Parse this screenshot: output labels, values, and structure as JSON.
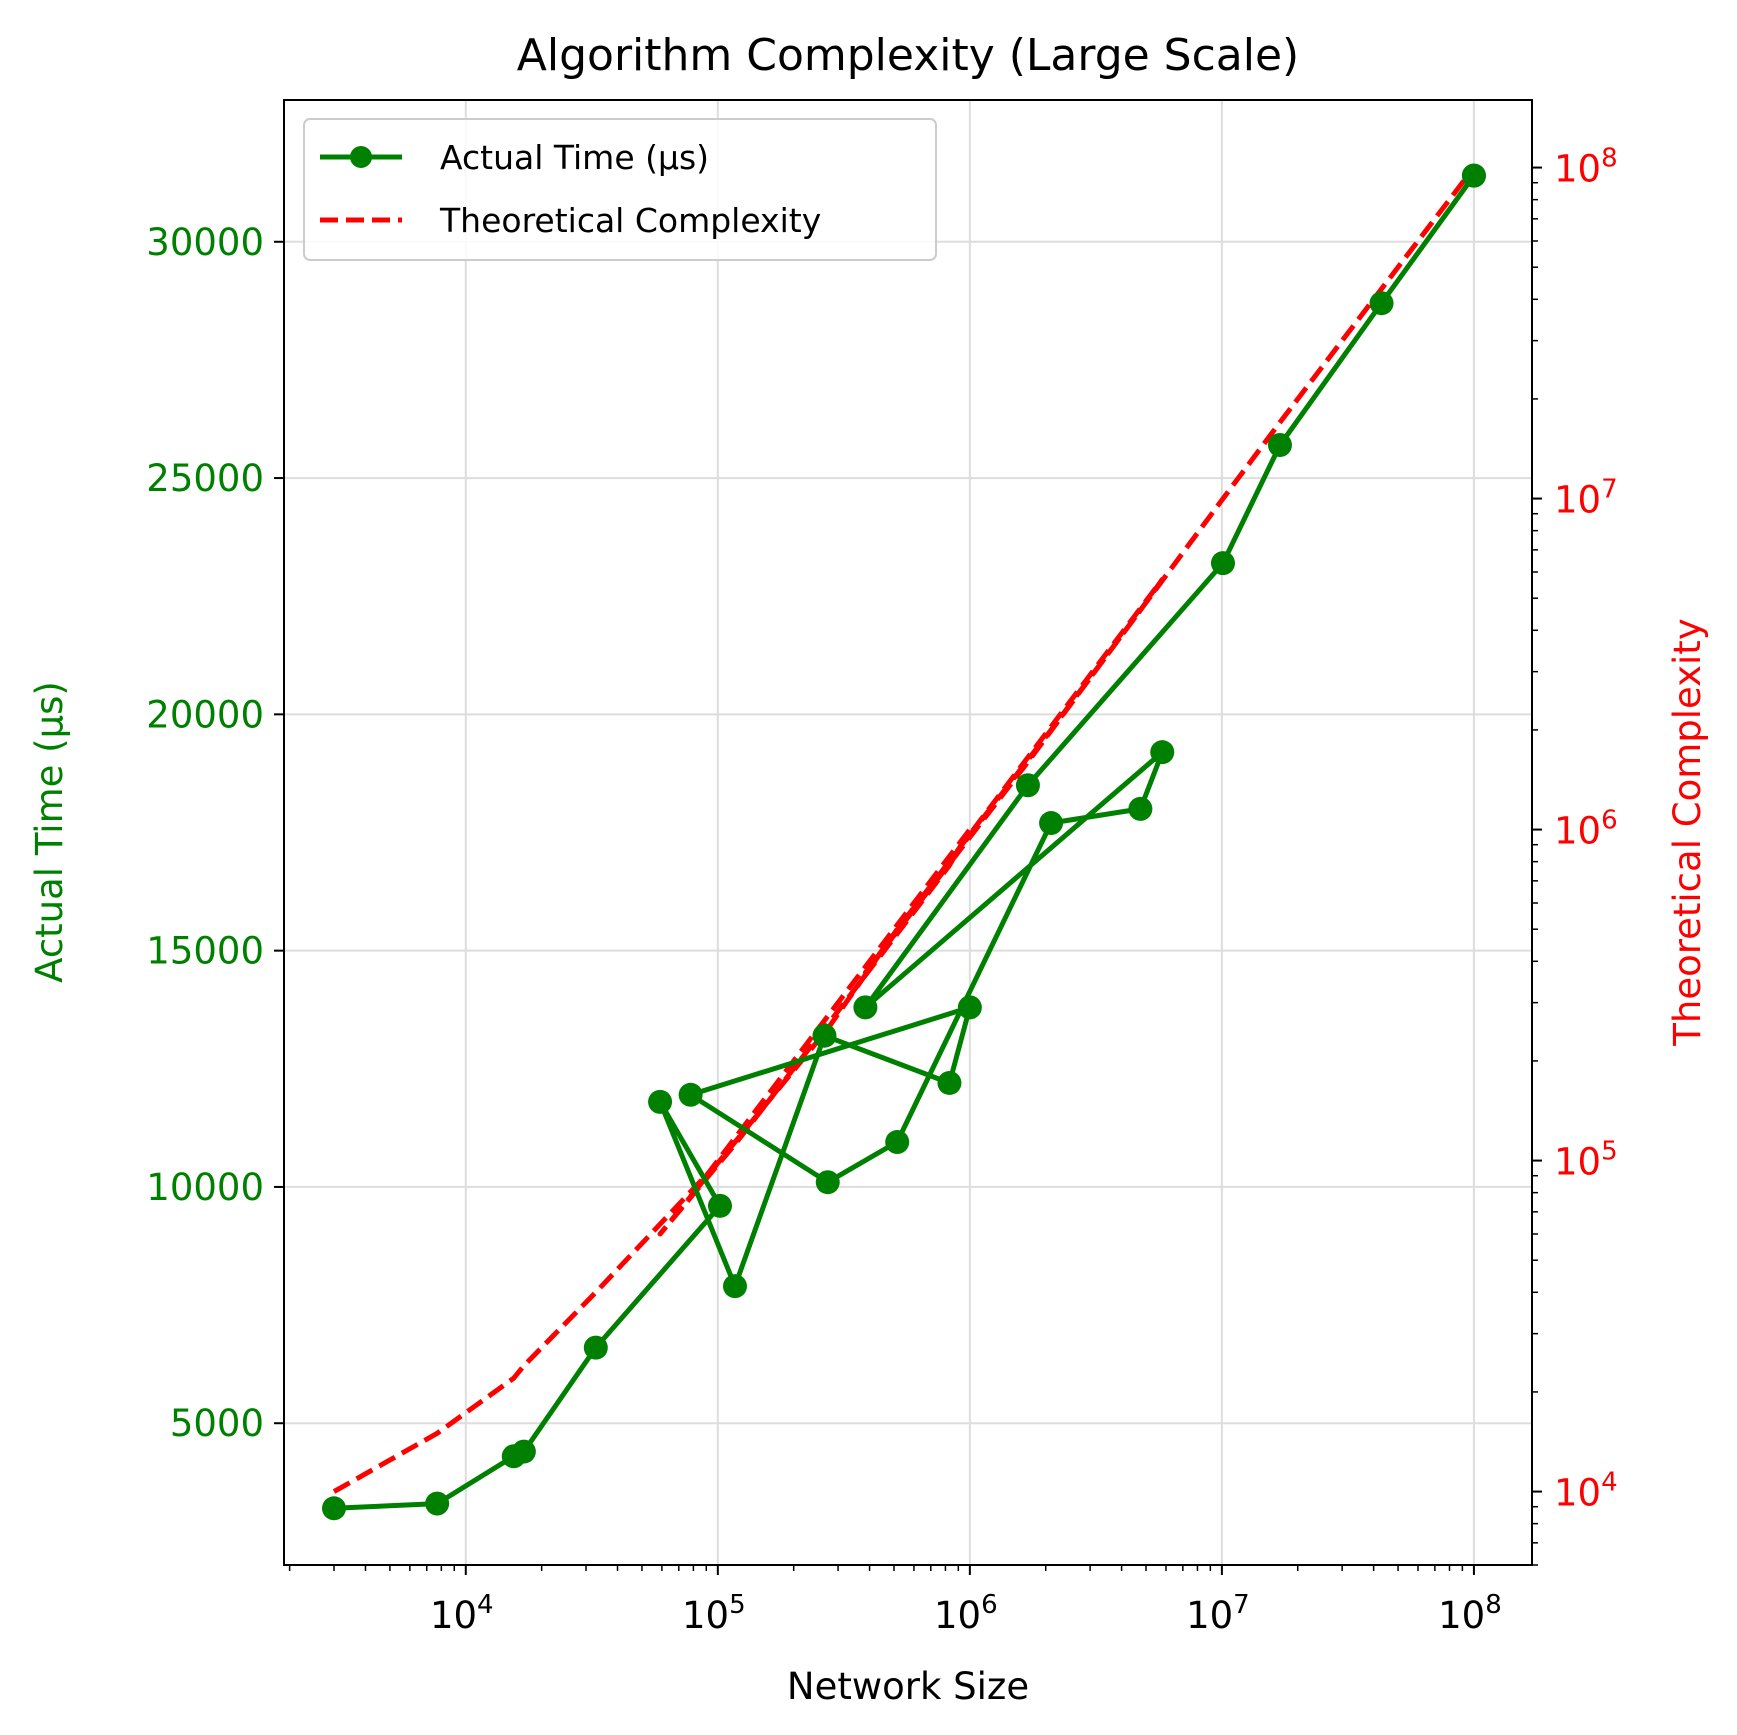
{
  "chart_data": {
    "type": "line",
    "title": "Algorithm Complexity (Large Scale)",
    "xlabel": "Network Size",
    "ylabel_left": "Actual Time (µs)",
    "ylabel_right": "Theoretical Complexity",
    "x_scale": "log",
    "y_left_scale": "linear",
    "y_right_scale": "log",
    "xlim": [
      1900,
      170000000
    ],
    "ylim_left": [
      2000,
      33000
    ],
    "ylim_right": [
      6000,
      160000000
    ],
    "x_ticks": [
      {
        "value": 10000,
        "base": "10",
        "exp": "4"
      },
      {
        "value": 100000,
        "base": "10",
        "exp": "5"
      },
      {
        "value": 1000000,
        "base": "10",
        "exp": "6"
      },
      {
        "value": 10000000,
        "base": "10",
        "exp": "7"
      },
      {
        "value": 100000000,
        "base": "10",
        "exp": "8"
      }
    ],
    "y_left_ticks": [
      {
        "value": 5000,
        "label": "5000"
      },
      {
        "value": 10000,
        "label": "10000"
      },
      {
        "value": 15000,
        "label": "15000"
      },
      {
        "value": 20000,
        "label": "20000"
      },
      {
        "value": 25000,
        "label": "25000"
      },
      {
        "value": 30000,
        "label": "30000"
      }
    ],
    "y_right_ticks": [
      {
        "value": 10000,
        "base": "10",
        "exp": "4"
      },
      {
        "value": 100000,
        "base": "10",
        "exp": "5"
      },
      {
        "value": 1000000,
        "base": "10",
        "exp": "6"
      },
      {
        "value": 10000000,
        "base": "10",
        "exp": "7"
      },
      {
        "value": 100000000,
        "base": "10",
        "exp": "8"
      }
    ],
    "grid": true,
    "legend_position": "top-left",
    "colors": {
      "actual": "#008000",
      "theoretical": "#ff0000",
      "left_axis": "#008000",
      "right_axis": "#ff0000",
      "grid": "#dddddd"
    },
    "series": [
      {
        "name": "Actual Time (µs)",
        "axis": "left",
        "style": "solid-line-with-markers",
        "x": [
          3000,
          7700,
          15500,
          17000,
          32800,
          102000,
          59000,
          117000,
          265000,
          830000,
          1000000,
          78000,
          273000,
          515000,
          2100000,
          4750000,
          5800000,
          385000,
          1700000,
          10100000,
          17000000,
          43000000,
          100000000,
          100000000
        ],
        "y": [
          3200,
          3300,
          4300,
          4400,
          6600,
          9600,
          11800,
          7900,
          13200,
          12200,
          13800,
          11950,
          10100,
          10950,
          17700,
          18000,
          19200,
          13800,
          18500,
          23200,
          25700,
          28700,
          31400,
          31400
        ]
      },
      {
        "name": "Theoretical Complexity",
        "axis": "right",
        "style": "dashed-line",
        "x": [
          3000,
          7700,
          15500,
          17000,
          32800,
          102000,
          59000,
          117000,
          265000,
          830000,
          1000000,
          78000,
          273000,
          515000,
          2100000,
          4750000,
          5800000,
          385000,
          1700000,
          10100000,
          17000000,
          43000000,
          100000000,
          100000000
        ],
        "y": [
          10000,
          15000,
          22000,
          24000,
          40000,
          100000,
          60000,
          112000,
          250000,
          780000,
          1000000,
          78000,
          250000,
          500000,
          2000000,
          4600000,
          5700000,
          370000,
          1600000,
          10000000,
          17000000,
          43000000,
          100000000,
          100000000
        ]
      }
    ]
  }
}
